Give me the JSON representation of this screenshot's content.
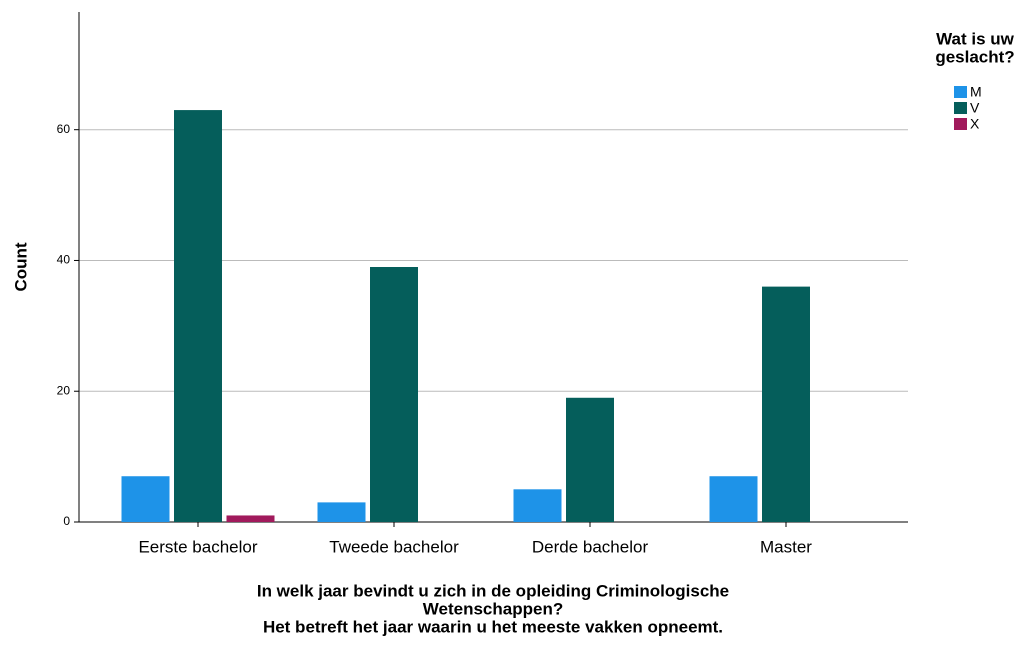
{
  "chart_data": {
    "type": "bar",
    "ylabel": "Count",
    "xlabel": [
      "In welk jaar bevindt u zich in de opleiding Criminologische",
      "Wetenschappen?",
      "Het betreft het jaar waarin u het meeste vakken opneemt."
    ],
    "legend_title": [
      "Wat is uw",
      "geslacht?"
    ],
    "categories": [
      "Eerste bachelor",
      "Tweede bachelor",
      "Derde bachelor",
      "Master"
    ],
    "series": [
      {
        "name": "M",
        "color": "#1e93e8",
        "values": [
          7,
          3,
          5,
          7
        ]
      },
      {
        "name": "V",
        "color": "#055e5b",
        "values": [
          63,
          39,
          19,
          36
        ]
      },
      {
        "name": "X",
        "color": "#a11a5c",
        "values": [
          1,
          0,
          0,
          0
        ]
      }
    ],
    "ylim": [
      0,
      78
    ],
    "yticks": [
      0,
      20,
      40,
      60
    ],
    "grid": true
  }
}
